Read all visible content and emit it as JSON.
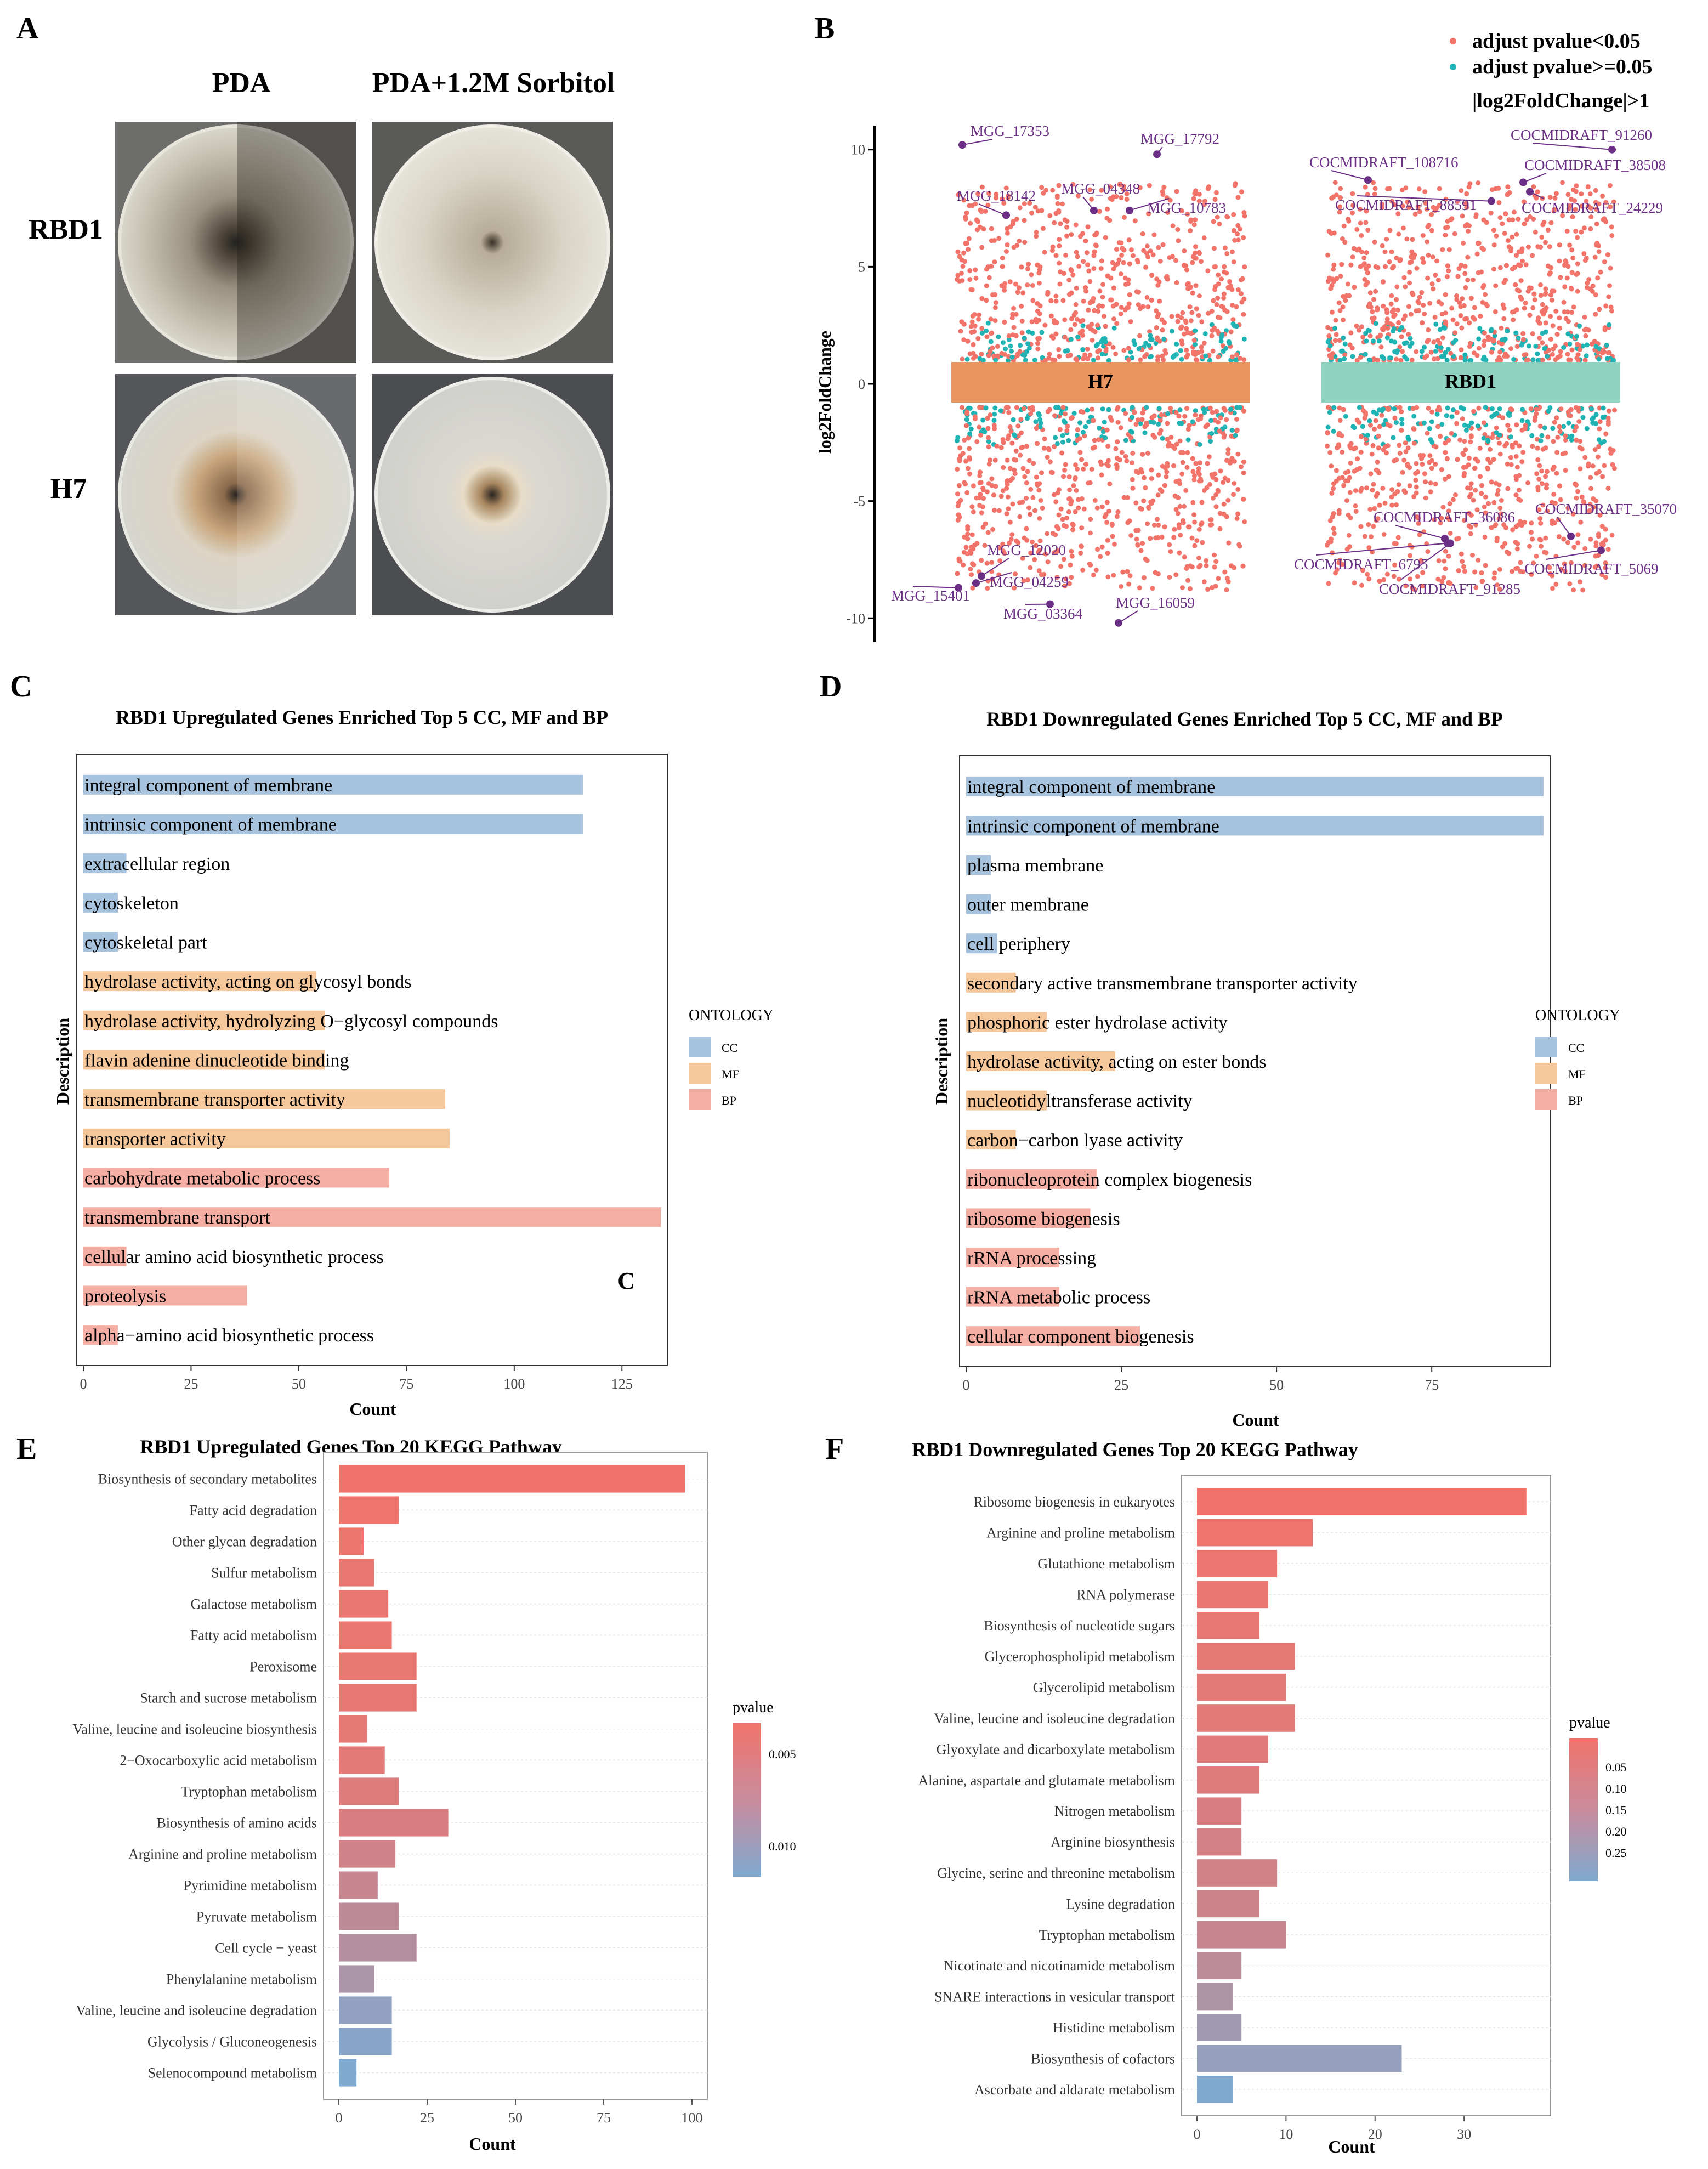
{
  "panel_letters": [
    "A",
    "B",
    "C",
    "D",
    "E",
    "F"
  ],
  "panelA": {
    "col_headers": [
      "PDA",
      "PDA+1.2M Sorbitol"
    ],
    "row_labels": [
      "RBD1",
      "H7"
    ]
  },
  "colors": {
    "sig": "#f1736a",
    "nonsig": "#1fb3b3",
    "highlight": "#6b2f86",
    "CC": "#a8c3dd",
    "MF": "#f5c79a",
    "BP": "#f4aea3",
    "H7_box": "#e8955f",
    "RBD1_box": "#8fd2c0",
    "pvalue_high": "#f0736b",
    "pvalue_low": "#7fa9cf"
  },
  "chart_data": [
    {
      "id": "B",
      "type": "scatter",
      "ylabel": "log2FoldChange",
      "ylim": [
        -11,
        11
      ],
      "yticks": [
        10,
        5,
        0,
        -5,
        -10
      ],
      "legend": [
        "adjust pvalue<0.05",
        "adjust pvalue>=0.05",
        "|log2FoldChange|>1"
      ],
      "groups": [
        {
          "name": "H7",
          "labeled_genes": [
            {
              "gene": "MGG_17353",
              "y": 10.2
            },
            {
              "gene": "MGG_17792",
              "y": 9.8
            },
            {
              "gene": "MGG_18142",
              "y": 7.2
            },
            {
              "gene": "MGG_04348",
              "y": 7.4
            },
            {
              "gene": "MGG_10783",
              "y": 7.4
            },
            {
              "gene": "MGG_12020",
              "y": -8.2
            },
            {
              "gene": "MGG_15401",
              "y": -8.7
            },
            {
              "gene": "MGG_04259",
              "y": -8.5
            },
            {
              "gene": "MGG_03364",
              "y": -9.4
            },
            {
              "gene": "MGG_16059",
              "y": -10.2
            }
          ]
        },
        {
          "name": "RBD1",
          "labeled_genes": [
            {
              "gene": "COCMIDRAFT_108716",
              "y": 8.7
            },
            {
              "gene": "COCMIDRAFT_91260",
              "y": 10.0
            },
            {
              "gene": "COCMIDRAFT_38508",
              "y": 8.6
            },
            {
              "gene": "COCMIDRAFT_88591",
              "y": 7.8
            },
            {
              "gene": "COCMIDRAFT_24229",
              "y": 8.2
            },
            {
              "gene": "COCMIDRAFT_36086",
              "y": -6.6
            },
            {
              "gene": "COCMIDRAFT_35070",
              "y": -6.5
            },
            {
              "gene": "COCMIDRAFT_6795",
              "y": -6.8
            },
            {
              "gene": "COCMIDRAFT_91285",
              "y": -6.8
            },
            {
              "gene": "COCMIDRAFT_5069",
              "y": -7.1
            }
          ]
        }
      ]
    },
    {
      "id": "C",
      "type": "bar",
      "orientation": "horizontal",
      "title": "RBD1 Upregulated Genes Enriched Top 5 CC, MF and BP",
      "xlabel": "Count",
      "ylabel": "Description",
      "xlim": [
        0,
        134
      ],
      "xticks": [
        0,
        25,
        50,
        75,
        100,
        125
      ],
      "legend_title": "ONTOLOGY",
      "legend": [
        "CC",
        "MF",
        "BP"
      ],
      "annotation": "C",
      "categories": [
        "integral component of membrane",
        "intrinsic component of membrane",
        "extracellular region",
        "cytoskeleton",
        "cytoskeletal part",
        "hydrolase activity, acting on glycosyl bonds",
        "hydrolase activity, hydrolyzing O−glycosyl compounds",
        "flavin adenine dinucleotide binding",
        "transmembrane transporter activity",
        "transporter activity",
        "carbohydrate metabolic process",
        "transmembrane transport",
        "cellular amino acid biosynthetic process",
        "proteolysis",
        "alpha−amino acid biosynthetic process"
      ],
      "values": [
        116,
        116,
        10,
        8,
        8,
        54,
        56,
        56,
        84,
        85,
        71,
        134,
        10,
        38,
        8
      ],
      "ontology": [
        "CC",
        "CC",
        "CC",
        "CC",
        "CC",
        "MF",
        "MF",
        "MF",
        "MF",
        "MF",
        "BP",
        "BP",
        "BP",
        "BP",
        "BP"
      ]
    },
    {
      "id": "D",
      "type": "bar",
      "orientation": "horizontal",
      "title": "RBD1 Downregulated Genes Enriched Top 5 CC, MF and BP",
      "xlabel": "Count",
      "ylabel": "Description",
      "xlim": [
        0,
        93
      ],
      "xticks": [
        0,
        25,
        50,
        75
      ],
      "legend_title": "ONTOLOGY",
      "legend": [
        "CC",
        "MF",
        "BP"
      ],
      "categories": [
        "integral component of membrane",
        "intrinsic component of membrane",
        "plasma membrane",
        "outer membrane",
        "cell periphery",
        "secondary active transmembrane transporter activity",
        "phosphoric ester hydrolase activity",
        "hydrolase activity, acting on ester bonds",
        "nucleotidyltransferase activity",
        "carbon−carbon lyase activity",
        "ribonucleoprotein complex biogenesis",
        "ribosome biogenesis",
        "rRNA processing",
        "rRNA metabolic process",
        "cellular component biogenesis"
      ],
      "values": [
        93,
        93,
        4,
        4,
        5,
        8,
        13,
        24,
        13,
        8,
        21,
        20,
        15,
        15,
        28
      ],
      "ontology": [
        "CC",
        "CC",
        "CC",
        "CC",
        "CC",
        "MF",
        "MF",
        "MF",
        "MF",
        "MF",
        "BP",
        "BP",
        "BP",
        "BP",
        "BP"
      ]
    },
    {
      "id": "E",
      "type": "bar",
      "orientation": "horizontal",
      "title": "RBD1 Upregulated Genes Top 20 KEGG Pathway",
      "xlabel": "Count",
      "xlim": [
        0,
        100
      ],
      "xticks": [
        0,
        25,
        50,
        75,
        100
      ],
      "legend_title": "pvalue",
      "legend_ticks": [
        "0.005",
        "0.010"
      ],
      "categories": [
        "Biosynthesis of secondary metabolites",
        "Fatty acid degradation",
        "Other glycan degradation",
        "Sulfur metabolism",
        "Galactose metabolism",
        "Fatty acid metabolism",
        "Peroxisome",
        "Starch and sucrose metabolism",
        "Valine, leucine and isoleucine biosynthesis",
        "2−Oxocarboxylic acid metabolism",
        "Tryptophan metabolism",
        "Biosynthesis of amino acids",
        "Arginine and proline metabolism",
        "Pyrimidine metabolism",
        "Pyruvate metabolism",
        "Cell cycle − yeast",
        "Phenylalanine metabolism",
        "Valine, leucine and isoleucine degradation",
        "Glycolysis / Gluconeogenesis",
        "Selenocompound metabolism"
      ],
      "values": [
        98,
        17,
        7,
        10,
        14,
        15,
        22,
        22,
        8,
        13,
        17,
        31,
        16,
        11,
        17,
        22,
        10,
        15,
        15,
        5
      ],
      "pvalue": [
        0.0003,
        0.0005,
        0.0007,
        0.0009,
        0.001,
        0.001,
        0.0012,
        0.0013,
        0.0015,
        0.002,
        0.0025,
        0.003,
        0.004,
        0.005,
        0.006,
        0.007,
        0.008,
        0.011,
        0.012,
        0.013
      ]
    },
    {
      "id": "F",
      "type": "bar",
      "orientation": "horizontal",
      "title": "RBD1 Downregulated Genes Top 20 KEGG Pathway",
      "xlabel": "Count",
      "xlim": [
        0,
        38
      ],
      "xticks": [
        0,
        10,
        20,
        30
      ],
      "legend_title": "pvalue",
      "legend_ticks": [
        "0.05",
        "0.10",
        "0.15",
        "0.20",
        "0.25"
      ],
      "categories": [
        "Ribosome biogenesis in eukaryotes",
        "Arginine and proline metabolism",
        "Glutathione metabolism",
        "RNA polymerase",
        "Biosynthesis of nucleotide sugars",
        "Glycerophospholipid metabolism",
        "Glycerolipid metabolism",
        "Valine, leucine and isoleucine degradation",
        "Glyoxylate and dicarboxylate metabolism",
        "Alanine, aspartate and glutamate metabolism",
        "Nitrogen metabolism",
        "Arginine biosynthesis",
        "Glycine, serine and threonine metabolism",
        "Lysine degradation",
        "Tryptophan metabolism",
        "Nicotinate and nicotinamide metabolism",
        "SNARE interactions in vesicular transport",
        "Histidine metabolism",
        "Biosynthesis of cofactors",
        "Ascorbate and aldarate metabolism"
      ],
      "values": [
        37,
        13,
        9,
        8,
        7,
        11,
        10,
        11,
        8,
        7,
        5,
        5,
        9,
        7,
        10,
        5,
        4,
        5,
        23,
        4
      ],
      "pvalue": [
        0.005,
        0.01,
        0.015,
        0.02,
        0.025,
        0.03,
        0.035,
        0.04,
        0.045,
        0.05,
        0.06,
        0.07,
        0.08,
        0.09,
        0.1,
        0.13,
        0.16,
        0.19,
        0.22,
        0.27
      ]
    }
  ]
}
